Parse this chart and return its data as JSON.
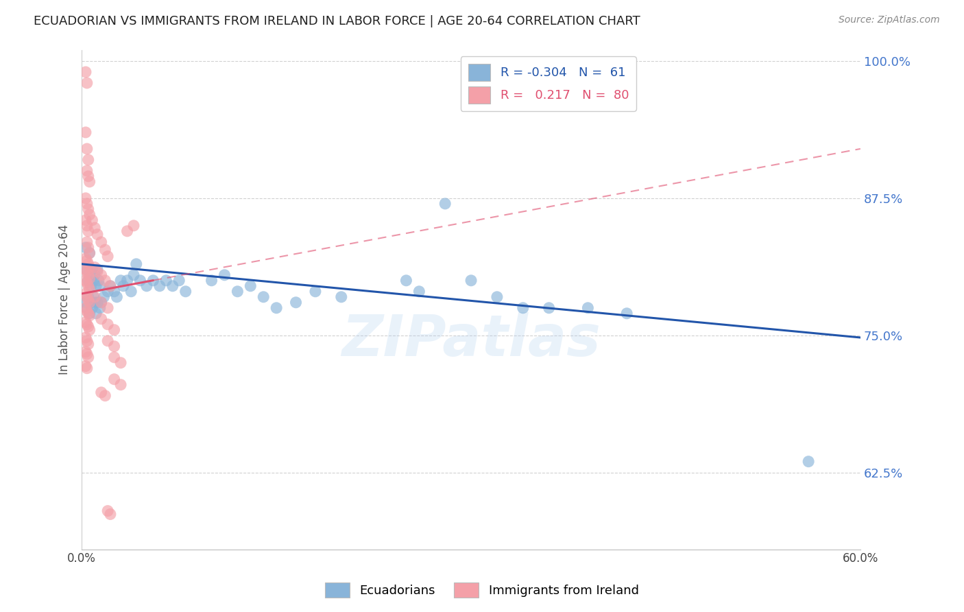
{
  "title": "ECUADORIAN VS IMMIGRANTS FROM IRELAND IN LABOR FORCE | AGE 20-64 CORRELATION CHART",
  "source": "Source: ZipAtlas.com",
  "ylabel": "In Labor Force | Age 20-64",
  "xlim": [
    0.0,
    0.6
  ],
  "ylim": [
    0.555,
    1.01
  ],
  "yticks_right": [
    0.625,
    0.75,
    0.875,
    1.0
  ],
  "ytick_right_labels": [
    "62.5%",
    "75.0%",
    "87.5%",
    "100.0%"
  ],
  "blue_color": "#89B4D9",
  "pink_color": "#F4A0A8",
  "blue_line_color": "#2255AA",
  "pink_line_color": "#E05070",
  "legend_R_blue": "-0.304",
  "legend_N_blue": "61",
  "legend_R_pink": "0.217",
  "legend_N_pink": "80",
  "watermark": "ZIPatlas",
  "blue_trend": [
    0.0,
    0.6,
    0.815,
    0.748
  ],
  "pink_trend": [
    0.0,
    0.6,
    0.788,
    0.92
  ],
  "pink_trend_solid_end": 0.055,
  "blue_dots": [
    [
      0.003,
      0.83
    ],
    [
      0.004,
      0.81
    ],
    [
      0.005,
      0.8
    ],
    [
      0.006,
      0.825
    ],
    [
      0.007,
      0.795
    ],
    [
      0.008,
      0.81
    ],
    [
      0.009,
      0.8
    ],
    [
      0.01,
      0.805
    ],
    [
      0.011,
      0.795
    ],
    [
      0.012,
      0.81
    ],
    [
      0.013,
      0.8
    ],
    [
      0.014,
      0.795
    ],
    [
      0.003,
      0.78
    ],
    [
      0.004,
      0.775
    ],
    [
      0.005,
      0.785
    ],
    [
      0.006,
      0.77
    ],
    [
      0.007,
      0.78
    ],
    [
      0.008,
      0.775
    ],
    [
      0.009,
      0.785
    ],
    [
      0.01,
      0.78
    ],
    [
      0.011,
      0.77
    ],
    [
      0.012,
      0.78
    ],
    [
      0.014,
      0.775
    ],
    [
      0.015,
      0.78
    ],
    [
      0.017,
      0.785
    ],
    [
      0.02,
      0.79
    ],
    [
      0.022,
      0.795
    ],
    [
      0.025,
      0.79
    ],
    [
      0.027,
      0.785
    ],
    [
      0.03,
      0.8
    ],
    [
      0.032,
      0.795
    ],
    [
      0.035,
      0.8
    ],
    [
      0.038,
      0.79
    ],
    [
      0.04,
      0.805
    ],
    [
      0.042,
      0.815
    ],
    [
      0.045,
      0.8
    ],
    [
      0.05,
      0.795
    ],
    [
      0.055,
      0.8
    ],
    [
      0.06,
      0.795
    ],
    [
      0.065,
      0.8
    ],
    [
      0.07,
      0.795
    ],
    [
      0.075,
      0.8
    ],
    [
      0.08,
      0.79
    ],
    [
      0.1,
      0.8
    ],
    [
      0.11,
      0.805
    ],
    [
      0.12,
      0.79
    ],
    [
      0.13,
      0.795
    ],
    [
      0.14,
      0.785
    ],
    [
      0.15,
      0.775
    ],
    [
      0.165,
      0.78
    ],
    [
      0.18,
      0.79
    ],
    [
      0.2,
      0.785
    ],
    [
      0.25,
      0.8
    ],
    [
      0.26,
      0.79
    ],
    [
      0.28,
      0.87
    ],
    [
      0.3,
      0.8
    ],
    [
      0.32,
      0.785
    ],
    [
      0.34,
      0.775
    ],
    [
      0.36,
      0.775
    ],
    [
      0.39,
      0.775
    ],
    [
      0.42,
      0.77
    ],
    [
      0.56,
      0.635
    ]
  ],
  "pink_dots": [
    [
      0.003,
      0.99
    ],
    [
      0.004,
      0.98
    ],
    [
      0.003,
      0.935
    ],
    [
      0.004,
      0.92
    ],
    [
      0.005,
      0.91
    ],
    [
      0.004,
      0.9
    ],
    [
      0.005,
      0.895
    ],
    [
      0.006,
      0.89
    ],
    [
      0.003,
      0.875
    ],
    [
      0.004,
      0.87
    ],
    [
      0.005,
      0.865
    ],
    [
      0.006,
      0.86
    ],
    [
      0.003,
      0.855
    ],
    [
      0.004,
      0.85
    ],
    [
      0.005,
      0.845
    ],
    [
      0.004,
      0.835
    ],
    [
      0.005,
      0.83
    ],
    [
      0.006,
      0.825
    ],
    [
      0.003,
      0.82
    ],
    [
      0.004,
      0.818
    ],
    [
      0.005,
      0.815
    ],
    [
      0.006,
      0.812
    ],
    [
      0.003,
      0.81
    ],
    [
      0.004,
      0.808
    ],
    [
      0.005,
      0.805
    ],
    [
      0.006,
      0.802
    ],
    [
      0.003,
      0.8
    ],
    [
      0.004,
      0.798
    ],
    [
      0.005,
      0.795
    ],
    [
      0.006,
      0.792
    ],
    [
      0.003,
      0.788
    ],
    [
      0.004,
      0.785
    ],
    [
      0.005,
      0.782
    ],
    [
      0.006,
      0.78
    ],
    [
      0.003,
      0.775
    ],
    [
      0.004,
      0.772
    ],
    [
      0.005,
      0.77
    ],
    [
      0.006,
      0.768
    ],
    [
      0.003,
      0.762
    ],
    [
      0.004,
      0.76
    ],
    [
      0.005,
      0.758
    ],
    [
      0.006,
      0.755
    ],
    [
      0.003,
      0.748
    ],
    [
      0.004,
      0.745
    ],
    [
      0.005,
      0.742
    ],
    [
      0.003,
      0.735
    ],
    [
      0.004,
      0.733
    ],
    [
      0.005,
      0.73
    ],
    [
      0.003,
      0.722
    ],
    [
      0.004,
      0.72
    ],
    [
      0.008,
      0.855
    ],
    [
      0.01,
      0.848
    ],
    [
      0.012,
      0.842
    ],
    [
      0.015,
      0.835
    ],
    [
      0.018,
      0.828
    ],
    [
      0.02,
      0.822
    ],
    [
      0.01,
      0.812
    ],
    [
      0.012,
      0.808
    ],
    [
      0.015,
      0.805
    ],
    [
      0.018,
      0.8
    ],
    [
      0.022,
      0.795
    ],
    [
      0.01,
      0.785
    ],
    [
      0.015,
      0.78
    ],
    [
      0.02,
      0.775
    ],
    [
      0.015,
      0.765
    ],
    [
      0.02,
      0.76
    ],
    [
      0.025,
      0.755
    ],
    [
      0.02,
      0.745
    ],
    [
      0.025,
      0.74
    ],
    [
      0.025,
      0.73
    ],
    [
      0.03,
      0.725
    ],
    [
      0.035,
      0.845
    ],
    [
      0.04,
      0.85
    ],
    [
      0.025,
      0.71
    ],
    [
      0.03,
      0.705
    ],
    [
      0.015,
      0.698
    ],
    [
      0.018,
      0.695
    ],
    [
      0.02,
      0.59
    ],
    [
      0.022,
      0.587
    ]
  ]
}
